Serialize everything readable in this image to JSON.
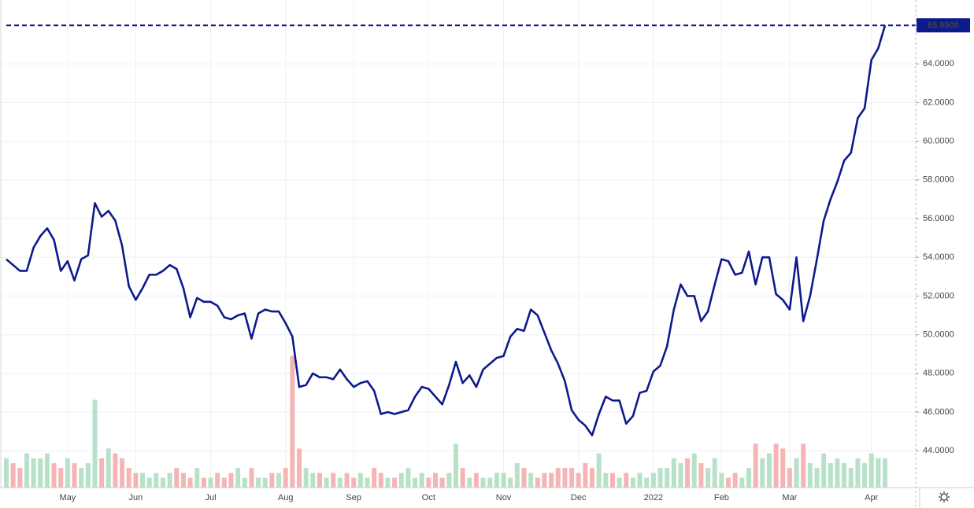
{
  "chart_data": {
    "type": "line",
    "categories": [
      null,
      null,
      null,
      null,
      null,
      null,
      null,
      null,
      null,
      "May",
      null,
      null,
      null,
      null,
      null,
      null,
      null,
      null,
      null,
      "Jun",
      null,
      null,
      null,
      null,
      null,
      null,
      null,
      null,
      null,
      null,
      "Jul",
      null,
      null,
      null,
      null,
      null,
      null,
      null,
      null,
      null,
      null,
      "Aug",
      null,
      null,
      null,
      null,
      null,
      null,
      null,
      null,
      null,
      "Sep",
      null,
      null,
      null,
      null,
      null,
      null,
      null,
      null,
      null,
      null,
      "Oct",
      null,
      null,
      null,
      null,
      null,
      null,
      null,
      null,
      null,
      null,
      "Nov",
      null,
      null,
      null,
      null,
      null,
      null,
      null,
      null,
      null,
      null,
      "Dec",
      null,
      null,
      null,
      null,
      null,
      null,
      null,
      null,
      null,
      null,
      "2022",
      null,
      null,
      null,
      null,
      null,
      null,
      null,
      null,
      null,
      "Feb",
      null,
      null,
      null,
      null,
      null,
      null,
      null,
      null,
      null,
      "Mar",
      null,
      null,
      null,
      null,
      null,
      null,
      null,
      null,
      null,
      null,
      null,
      "Apr",
      null,
      null
    ],
    "values": [
      53.9,
      53.6,
      53.3,
      53.3,
      54.5,
      55.1,
      55.5,
      54.9,
      53.3,
      53.8,
      52.8,
      53.9,
      54.1,
      56.8,
      56.1,
      56.4,
      55.9,
      54.6,
      52.5,
      51.8,
      52.4,
      53.1,
      53.1,
      53.3,
      53.6,
      53.4,
      52.4,
      50.9,
      51.9,
      51.7,
      51.7,
      51.5,
      50.9,
      50.8,
      51.0,
      51.1,
      49.8,
      51.1,
      51.3,
      51.2,
      51.2,
      50.6,
      49.9,
      47.3,
      47.4,
      48.0,
      47.8,
      47.8,
      47.7,
      48.2,
      47.7,
      47.3,
      47.5,
      47.6,
      47.1,
      45.9,
      46.0,
      45.9,
      46.0,
      46.1,
      46.8,
      47.3,
      47.2,
      46.8,
      46.4,
      47.4,
      48.6,
      47.5,
      47.9,
      47.3,
      48.2,
      48.5,
      48.8,
      48.9,
      49.9,
      50.3,
      50.2,
      51.3,
      51.0,
      50.1,
      49.2,
      48.5,
      47.6,
      46.1,
      45.6,
      45.3,
      44.8,
      45.9,
      46.8,
      46.6,
      46.6,
      45.4,
      45.8,
      47.0,
      47.1,
      48.1,
      48.4,
      49.4,
      51.3,
      52.6,
      52.0,
      52.0,
      50.7,
      51.2,
      52.6,
      53.9,
      53.8,
      53.1,
      53.2,
      54.3,
      52.6,
      54.0,
      54.0,
      52.1,
      51.8,
      51.3,
      54.0,
      50.7,
      52.0,
      53.9,
      55.9,
      57.0,
      57.9,
      59.0,
      59.4,
      61.2,
      61.7,
      64.2,
      64.8,
      65.99
    ],
    "color": "#0d1a8c",
    "volume": [
      6,
      5,
      4,
      7,
      6,
      6,
      7,
      5,
      4,
      6,
      5,
      4,
      5,
      18,
      6,
      8,
      7,
      6,
      4,
      3,
      3,
      2,
      3,
      2,
      3,
      4,
      3,
      2,
      4,
      2,
      2,
      3,
      2,
      3,
      4,
      2,
      4,
      2,
      2,
      3,
      3,
      4,
      27,
      8,
      4,
      3,
      3,
      2,
      3,
      2,
      3,
      2,
      3,
      2,
      4,
      3,
      2,
      2,
      3,
      4,
      2,
      3,
      2,
      3,
      2,
      3,
      9,
      4,
      2,
      3,
      2,
      2,
      3,
      3,
      2,
      5,
      4,
      3,
      2,
      3,
      3,
      4,
      4,
      4,
      3,
      5,
      4,
      7,
      3,
      3,
      2,
      3,
      2,
      3,
      2,
      3,
      4,
      4,
      6,
      5,
      6,
      7,
      5,
      4,
      6,
      3,
      2,
      3,
      2,
      4,
      9,
      6,
      7,
      9,
      8,
      4,
      6,
      9,
      5,
      4,
      7,
      5,
      6,
      5,
      4,
      6,
      5,
      7,
      6,
      6
    ],
    "up_color": "#b7e1c9",
    "down_color": "#f5b5b5",
    "vlim": [
      0,
      100
    ],
    "last_value": {
      "value": 65.99,
      "label": "65.9900"
    },
    "ylim": [
      42.1,
      67.3
    ],
    "yticks": [
      {
        "value": 44,
        "label": "44.0000"
      },
      {
        "value": 46,
        "label": "46.0000"
      },
      {
        "value": 48,
        "label": "48.0000"
      },
      {
        "value": 50,
        "label": "50.0000"
      },
      {
        "value": 52,
        "label": "52.0000"
      },
      {
        "value": 54,
        "label": "54.0000"
      },
      {
        "value": 56,
        "label": "56.0000"
      },
      {
        "value": 58,
        "label": "58.0000"
      },
      {
        "value": 60,
        "label": "60.0000"
      },
      {
        "value": 62,
        "label": "62.0000"
      },
      {
        "value": 64,
        "label": "64.0000"
      }
    ],
    "grid": true
  }
}
